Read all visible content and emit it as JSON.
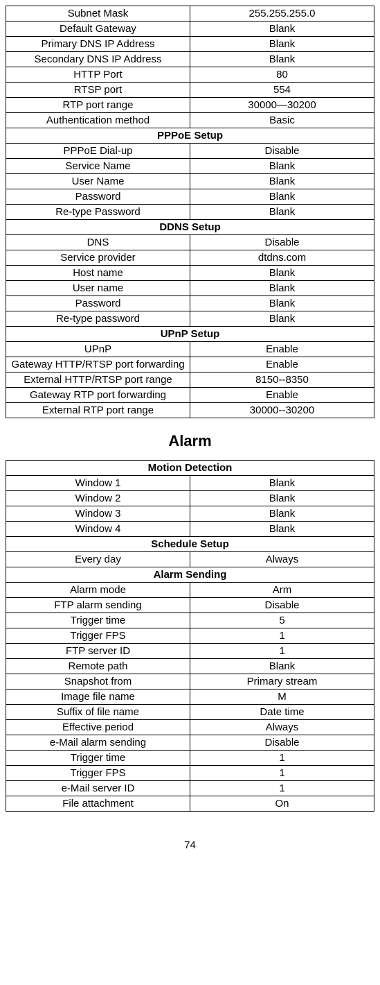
{
  "table1": {
    "rows": [
      {
        "label": "Subnet Mask",
        "value": "255.255.255.0"
      },
      {
        "label": "Default Gateway",
        "value": "Blank"
      },
      {
        "label": "Primary DNS IP Address",
        "value": "Blank"
      },
      {
        "label": "Secondary DNS IP Address",
        "value": "Blank"
      },
      {
        "label": "HTTP Port",
        "value": "80"
      },
      {
        "label": "RTSP port",
        "value": "554"
      },
      {
        "label": "RTP port range",
        "value": "30000—30200"
      },
      {
        "label": "Authentication method",
        "value": "Basic"
      }
    ],
    "section_pppoe": "PPPoE Setup",
    "pppoe_rows": [
      {
        "label": "PPPoE Dial-up",
        "value": "Disable"
      },
      {
        "label": "Service Name",
        "value": "Blank"
      },
      {
        "label": "User Name",
        "value": "Blank"
      },
      {
        "label": "Password",
        "value": "Blank"
      },
      {
        "label": "Re-type Password",
        "value": "Blank"
      }
    ],
    "section_ddns": "DDNS Setup",
    "ddns_rows": [
      {
        "label": "DNS",
        "value": "Disable"
      },
      {
        "label": "Service provider",
        "value": "dtdns.com"
      },
      {
        "label": "Host name",
        "value": "Blank"
      },
      {
        "label": "User name",
        "value": "Blank"
      },
      {
        "label": "Password",
        "value": "Blank"
      },
      {
        "label": "Re-type password",
        "value": "Blank"
      }
    ],
    "section_upnp": "UPnP Setup",
    "upnp_rows": [
      {
        "label": "UPnP",
        "value": "Enable"
      },
      {
        "label": "Gateway HTTP/RTSP port forwarding",
        "value": "Enable"
      },
      {
        "label": "External HTTP/RTSP port range",
        "value": "8150--8350"
      },
      {
        "label": "Gateway RTP port forwarding",
        "value": "Enable"
      },
      {
        "label": "External RTP port range",
        "value": "30000--30200"
      }
    ]
  },
  "alarm_heading": "Alarm",
  "table2": {
    "section_motion": "Motion Detection",
    "motion_rows": [
      {
        "label": "Window 1",
        "value": "Blank"
      },
      {
        "label": "Window 2",
        "value": "Blank"
      },
      {
        "label": "Window 3",
        "value": "Blank"
      },
      {
        "label": "Window 4",
        "value": "Blank"
      }
    ],
    "section_schedule": "Schedule Setup",
    "schedule_rows": [
      {
        "label": "Every day",
        "value": "Always"
      }
    ],
    "section_alarm_sending": "Alarm Sending",
    "alarm_sending_rows": [
      {
        "label": "Alarm mode",
        "value": "Arm"
      },
      {
        "label": "FTP alarm sending",
        "value": "Disable"
      },
      {
        "label": "Trigger time",
        "value": "5"
      },
      {
        "label": "Trigger FPS",
        "value": "1"
      },
      {
        "label": "FTP server ID",
        "value": "1"
      },
      {
        "label": "Remote path",
        "value": "Blank"
      },
      {
        "label": "Snapshot from",
        "value": "Primary stream"
      },
      {
        "label": "Image file name",
        "value": "M"
      },
      {
        "label": "Suffix of file name",
        "value": "Date time"
      },
      {
        "label": "Effective period",
        "value": "Always"
      },
      {
        "label": "e-Mail alarm sending",
        "value": "Disable"
      },
      {
        "label": "Trigger time",
        "value": "1"
      },
      {
        "label": "Trigger FPS",
        "value": "1"
      },
      {
        "label": "e-Mail server ID",
        "value": "1"
      },
      {
        "label": "File attachment",
        "value": "On"
      }
    ]
  },
  "page_number": "74"
}
